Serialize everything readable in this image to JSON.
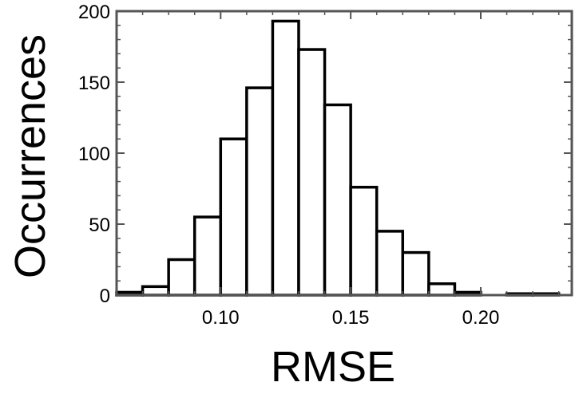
{
  "chart_data": {
    "type": "bar",
    "title": "",
    "xlabel": "RMSE",
    "ylabel": "Occurrences",
    "xlim": [
      0.06,
      0.235
    ],
    "ylim": [
      0,
      200
    ],
    "x_ticks": [
      "0.10",
      "0.15",
      "0.20"
    ],
    "x_tick_values": [
      0.1,
      0.15,
      0.2
    ],
    "y_ticks": [
      "0",
      "50",
      "100",
      "150",
      "200"
    ],
    "y_tick_values": [
      0,
      50,
      100,
      150,
      200
    ],
    "bin_width": 0.01,
    "bins": [
      {
        "start": 0.06,
        "end": 0.07,
        "value": 2
      },
      {
        "start": 0.07,
        "end": 0.08,
        "value": 6
      },
      {
        "start": 0.08,
        "end": 0.09,
        "value": 25
      },
      {
        "start": 0.09,
        "end": 0.1,
        "value": 55
      },
      {
        "start": 0.1,
        "end": 0.11,
        "value": 110
      },
      {
        "start": 0.11,
        "end": 0.12,
        "value": 146
      },
      {
        "start": 0.12,
        "end": 0.13,
        "value": 193
      },
      {
        "start": 0.13,
        "end": 0.14,
        "value": 173
      },
      {
        "start": 0.14,
        "end": 0.15,
        "value": 134
      },
      {
        "start": 0.15,
        "end": 0.16,
        "value": 76
      },
      {
        "start": 0.16,
        "end": 0.17,
        "value": 45
      },
      {
        "start": 0.17,
        "end": 0.18,
        "value": 30
      },
      {
        "start": 0.18,
        "end": 0.19,
        "value": 8
      },
      {
        "start": 0.19,
        "end": 0.2,
        "value": 2
      },
      {
        "start": 0.2,
        "end": 0.21,
        "value": 0
      },
      {
        "start": 0.21,
        "end": 0.22,
        "value": 1
      },
      {
        "start": 0.22,
        "end": 0.23,
        "value": 1
      }
    ],
    "grid": false,
    "legend": "none",
    "colors": {
      "bar_fill": "#ffffff",
      "bar_stroke": "#000000",
      "frame": "#555555",
      "text": "#000000"
    }
  }
}
